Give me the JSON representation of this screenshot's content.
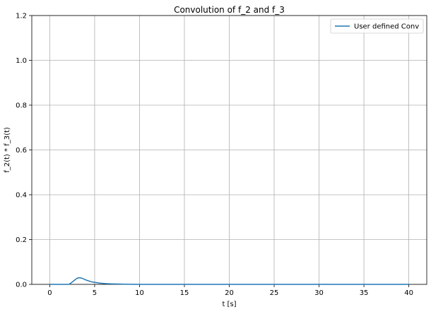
{
  "chart_data": {
    "type": "line",
    "title": "Convolution of f_2 and f_3",
    "xlabel": "t [s]",
    "ylabel": "f_2(t) * f_3(t)",
    "xlim": [
      -2,
      42
    ],
    "ylim": [
      0,
      1.2
    ],
    "xticks": [
      0,
      5,
      10,
      15,
      20,
      25,
      30,
      35,
      40
    ],
    "xtick_labels": [
      "0",
      "5",
      "10",
      "15",
      "20",
      "25",
      "30",
      "35",
      "40"
    ],
    "yticks": [
      0.0,
      0.2,
      0.4,
      0.6,
      0.8,
      1.0,
      1.2
    ],
    "ytick_labels": [
      "0.0",
      "0.2",
      "0.4",
      "0.6",
      "0.8",
      "1.0",
      "1.2"
    ],
    "grid": true,
    "legend": {
      "placement": "top-right"
    },
    "series": [
      {
        "name": "User defined Conv",
        "color": "#1f77b4",
        "x": [
          0,
          1,
          2,
          2.2,
          2.5,
          2.8,
          3.0,
          3.2,
          3.4,
          3.6,
          3.8,
          4.0,
          4.3,
          4.6,
          5.0,
          5.5,
          6.0,
          7.0,
          8.0,
          10.0,
          15.0,
          20.0,
          30.0,
          40.0
        ],
        "y": [
          0,
          0,
          0,
          0.002,
          0.01,
          0.02,
          0.026,
          0.029,
          0.029,
          0.027,
          0.024,
          0.02,
          0.016,
          0.012,
          0.009,
          0.006,
          0.004,
          0.002,
          0.001,
          0.0,
          0.0,
          0.0,
          0.0,
          0.0
        ]
      }
    ]
  }
}
